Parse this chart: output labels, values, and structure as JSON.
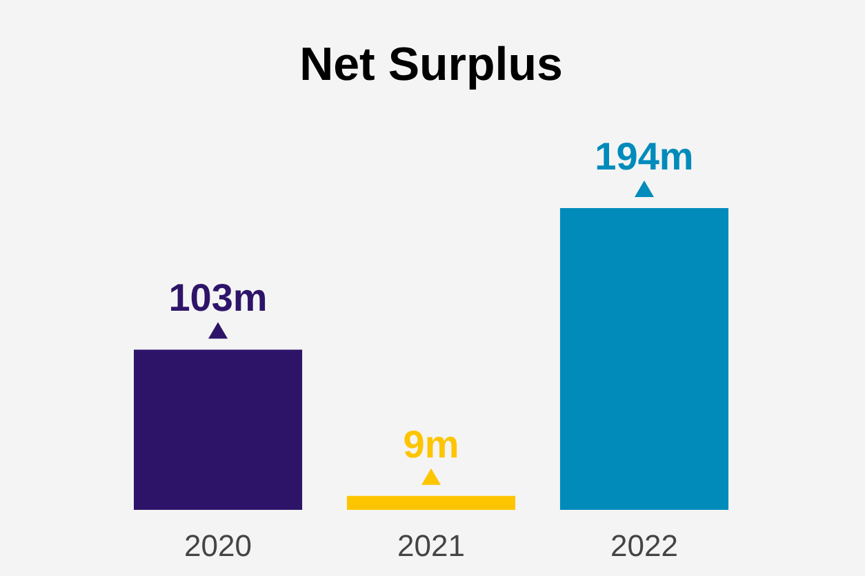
{
  "chart_data": {
    "type": "bar",
    "title": "Net Surplus",
    "categories": [
      "2020",
      "2021",
      "2022"
    ],
    "values": [
      103,
      9,
      194
    ],
    "value_labels": [
      "103m",
      "9m",
      "194m"
    ],
    "colors": [
      "#2e1469",
      "#fdc500",
      "#008bbb"
    ]
  }
}
